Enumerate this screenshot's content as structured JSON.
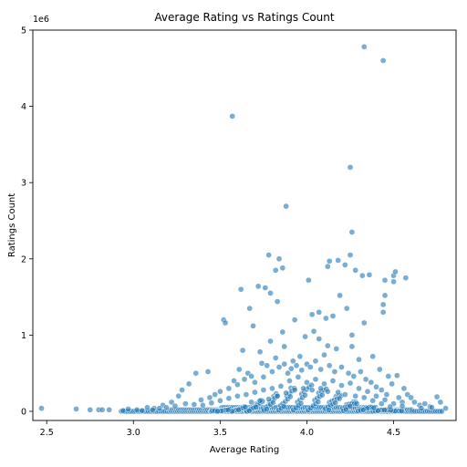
{
  "chart_data": {
    "type": "scatter",
    "title": "Average Rating vs Ratings Count",
    "xlabel": "Average Rating",
    "ylabel": "Ratings Count",
    "y_offset_label": "1e6",
    "xlim": [
      2.42,
      4.86
    ],
    "ylim": [
      -0.12,
      5.0
    ],
    "x_ticks": [
      2.5,
      3.0,
      3.5,
      4.0,
      4.5
    ],
    "x_tick_labels": [
      "2.5",
      "3.0",
      "3.5",
      "4.0",
      "4.5"
    ],
    "y_ticks": [
      0,
      1,
      2,
      3,
      4,
      5
    ],
    "y_tick_labels": [
      "0",
      "1",
      "2",
      "3",
      "4",
      "5"
    ],
    "grid": false,
    "point_color": "#1f77b4",
    "point_opacity": 0.6,
    "series": [
      {
        "points": [
          [
            2.47,
            0.04
          ],
          [
            2.67,
            0.03
          ],
          [
            2.75,
            0.02
          ],
          [
            2.8,
            0.02
          ],
          [
            2.82,
            0.02
          ],
          [
            2.86,
            0.02
          ],
          [
            2.94,
            0.01
          ],
          [
            2.97,
            0.03
          ],
          [
            3.02,
            0.02
          ],
          [
            3.05,
            0.01
          ],
          [
            3.57,
            3.87
          ],
          [
            3.88,
            2.69
          ],
          [
            4.25,
            3.2
          ],
          [
            4.33,
            4.78
          ],
          [
            4.44,
            4.6
          ],
          [
            4.26,
            2.35
          ],
          [
            4.25,
            2.05
          ],
          [
            4.22,
            1.92
          ],
          [
            4.28,
            1.85
          ],
          [
            4.32,
            1.78
          ],
          [
            4.36,
            1.79
          ],
          [
            4.5,
            1.78
          ],
          [
            4.51,
            1.83
          ],
          [
            4.57,
            1.75
          ],
          [
            4.5,
            1.7
          ],
          [
            4.45,
            1.72
          ],
          [
            4.45,
            1.52
          ],
          [
            4.44,
            1.4
          ],
          [
            4.44,
            1.3
          ],
          [
            4.18,
            1.98
          ],
          [
            4.13,
            1.97
          ],
          [
            4.12,
            1.9
          ],
          [
            4.01,
            1.72
          ],
          [
            3.78,
            2.05
          ],
          [
            3.84,
            2.0
          ],
          [
            3.86,
            1.88
          ],
          [
            3.82,
            1.85
          ],
          [
            3.72,
            1.64
          ],
          [
            3.76,
            1.62
          ],
          [
            3.79,
            1.55
          ],
          [
            3.83,
            1.44
          ],
          [
            3.62,
            1.6
          ],
          [
            3.67,
            1.35
          ],
          [
            3.69,
            1.12
          ],
          [
            3.52,
            1.2
          ],
          [
            3.53,
            1.16
          ],
          [
            3.93,
            1.2
          ],
          [
            4.07,
            1.3
          ],
          [
            4.03,
            1.27
          ],
          [
            4.11,
            1.22
          ],
          [
            4.15,
            1.25
          ],
          [
            4.23,
            1.35
          ],
          [
            4.19,
            1.52
          ],
          [
            4.33,
            1.16
          ],
          [
            4.26,
            1.0
          ],
          [
            3.86,
            1.04
          ],
          [
            3.99,
            0.98
          ],
          [
            4.07,
            0.95
          ],
          [
            3.79,
            0.92
          ],
          [
            4.12,
            0.86
          ],
          [
            3.87,
            0.85
          ],
          [
            4.26,
            0.85
          ],
          [
            4.38,
            0.72
          ],
          [
            4.04,
            1.05
          ],
          [
            4.17,
            0.82
          ],
          [
            3.73,
            0.78
          ],
          [
            3.63,
            0.8
          ],
          [
            3.96,
            0.72
          ],
          [
            4.1,
            0.74
          ],
          [
            4.3,
            0.68
          ],
          [
            3.92,
            0.66
          ],
          [
            3.74,
            0.63
          ],
          [
            3.43,
            0.52
          ],
          [
            3.36,
            0.5
          ],
          [
            3.61,
            0.55
          ],
          [
            3.66,
            0.5
          ],
          [
            4.42,
            0.55
          ],
          [
            4.47,
            0.46
          ],
          [
            4.52,
            0.47
          ],
          [
            4.49,
            0.36
          ],
          [
            4.56,
            0.3
          ],
          [
            4.58,
            0.22
          ],
          [
            4.6,
            0.18
          ],
          [
            4.62,
            0.12
          ],
          [
            4.65,
            0.08
          ],
          [
            4.71,
            0.06
          ],
          [
            4.75,
            0.19
          ],
          [
            4.77,
            0.12
          ],
          [
            4.8,
            0.04
          ],
          [
            4.66,
            0.04
          ],
          [
            3.32,
            0.36
          ],
          [
            3.28,
            0.28
          ],
          [
            3.26,
            0.2
          ],
          [
            3.22,
            0.12
          ],
          [
            3.17,
            0.08
          ],
          [
            3.12,
            0.04
          ],
          [
            3.08,
            0.05
          ],
          [
            3.11,
            0.02
          ],
          [
            3.15,
            0.04
          ],
          [
            3.19,
            0.05
          ],
          [
            3.24,
            0.07
          ],
          [
            3.3,
            0.1
          ],
          [
            3.35,
            0.09
          ],
          [
            3.39,
            0.15
          ],
          [
            3.44,
            0.18
          ],
          [
            3.47,
            0.22
          ],
          [
            3.5,
            0.26
          ],
          [
            3.55,
            0.3
          ],
          [
            3.58,
            0.4
          ],
          [
            3.6,
            0.35
          ],
          [
            3.64,
            0.42
          ],
          [
            3.68,
            0.46
          ],
          [
            3.7,
            0.38
          ],
          [
            3.75,
            0.45
          ],
          [
            3.77,
            0.6
          ],
          [
            3.8,
            0.52
          ],
          [
            3.82,
            0.7
          ],
          [
            3.84,
            0.58
          ],
          [
            3.87,
            0.62
          ],
          [
            3.89,
            0.5
          ],
          [
            3.91,
            0.56
          ],
          [
            3.94,
            0.6
          ],
          [
            3.97,
            0.54
          ],
          [
            4.0,
            0.62
          ],
          [
            4.02,
            0.58
          ],
          [
            4.05,
            0.66
          ],
          [
            4.08,
            0.55
          ],
          [
            4.13,
            0.6
          ],
          [
            4.16,
            0.52
          ],
          [
            4.2,
            0.58
          ],
          [
            4.24,
            0.5
          ],
          [
            4.27,
            0.46
          ],
          [
            4.31,
            0.52
          ],
          [
            4.34,
            0.42
          ],
          [
            4.37,
            0.38
          ],
          [
            4.4,
            0.32
          ],
          [
            4.43,
            0.28
          ],
          [
            4.46,
            0.22
          ],
          [
            4.53,
            0.18
          ],
          [
            4.55,
            0.12
          ],
          [
            4.68,
            0.1
          ],
          [
            4.72,
            0.05
          ],
          [
            3.9,
            0.4
          ],
          [
            3.95,
            0.45
          ],
          [
            4.0,
            0.38
          ],
          [
            4.05,
            0.42
          ],
          [
            4.1,
            0.36
          ],
          [
            4.15,
            0.4
          ],
          [
            4.2,
            0.34
          ],
          [
            4.25,
            0.37
          ],
          [
            3.85,
            0.33
          ],
          [
            3.8,
            0.3
          ],
          [
            3.75,
            0.28
          ],
          [
            3.7,
            0.25
          ],
          [
            3.65,
            0.22
          ],
          [
            3.6,
            0.2
          ],
          [
            3.55,
            0.17
          ],
          [
            3.5,
            0.14
          ],
          [
            3.45,
            0.11
          ],
          [
            3.4,
            0.08
          ],
          [
            4.3,
            0.3
          ],
          [
            4.35,
            0.26
          ],
          [
            4.4,
            0.2
          ],
          [
            4.45,
            0.15
          ],
          [
            4.5,
            0.1
          ],
          [
            4.55,
            0.07
          ],
          [
            3.98,
            0.3
          ],
          [
            4.03,
            0.28
          ],
          [
            4.08,
            0.3
          ],
          [
            3.93,
            0.28
          ],
          [
            4.12,
            0.26
          ],
          [
            4.18,
            0.25
          ],
          [
            3.88,
            0.24
          ],
          [
            3.83,
            0.2
          ],
          [
            4.22,
            0.22
          ],
          [
            4.28,
            0.2
          ],
          [
            4.33,
            0.18
          ],
          [
            3.78,
            0.16
          ],
          [
            3.73,
            0.14
          ],
          [
            3.68,
            0.12
          ],
          [
            4.38,
            0.14
          ],
          [
            4.43,
            0.1
          ],
          [
            4.48,
            0.06
          ]
        ]
      }
    ],
    "baseline_band": {
      "y": 0.0,
      "x_range": [
        2.93,
        4.78
      ],
      "note_shape": "dense points along y≈0"
    }
  }
}
